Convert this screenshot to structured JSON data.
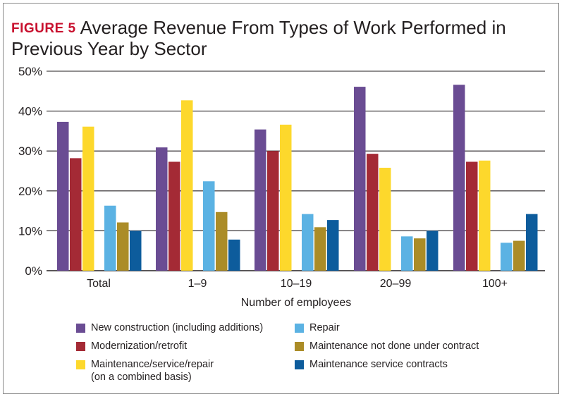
{
  "figure_label": "FIGURE 5",
  "chart_data": {
    "type": "bar",
    "title": "Average Revenue From Types of Work Performed in Previous Year by Sector",
    "xlabel": "Number of employees",
    "ylabel": "",
    "ylim": [
      0,
      50
    ],
    "yticks": [
      "0%",
      "10%",
      "20%",
      "30%",
      "40%",
      "50%"
    ],
    "grid": true,
    "categories": [
      "Total",
      "1–9",
      "10–19",
      "20–99",
      "100+"
    ],
    "series": [
      {
        "name": "New construction (including additions)",
        "color": "#6a4c93",
        "values": [
          37.3,
          30.9,
          35.4,
          46.1,
          46.6
        ]
      },
      {
        "name": "Modernization/retrofit",
        "color": "#a42a35",
        "values": [
          28.2,
          27.3,
          30.0,
          29.3,
          27.3
        ]
      },
      {
        "name": "Maintenance/service/repair (on a combined basis)",
        "color": "#fdd82c",
        "values": [
          36.1,
          42.7,
          36.6,
          25.8,
          27.6
        ]
      },
      {
        "name": "Repair",
        "color": "#5bb2e3",
        "values": [
          16.3,
          22.4,
          14.2,
          8.6,
          7.0
        ]
      },
      {
        "name": "Maintenance not done under contract",
        "color": "#ab8c27",
        "values": [
          12.1,
          14.7,
          10.9,
          8.1,
          7.5
        ]
      },
      {
        "name": "Maintenance service contracts",
        "color": "#0d5c9c",
        "values": [
          10.0,
          7.8,
          12.7,
          10.0,
          14.2
        ]
      }
    ],
    "legend": {
      "placement": "bottom",
      "items": [
        {
          "line1": "New construction (including additions)",
          "line2": ""
        },
        {
          "line1": "Repair",
          "line2": ""
        },
        {
          "line1": "Modernization/retrofit",
          "line2": ""
        },
        {
          "line1": "Maintenance not done under contract",
          "line2": ""
        },
        {
          "line1": "Maintenance/service/repair",
          "line2": "(on a combined basis)"
        },
        {
          "line1": "Maintenance service contracts",
          "line2": ""
        }
      ]
    }
  }
}
